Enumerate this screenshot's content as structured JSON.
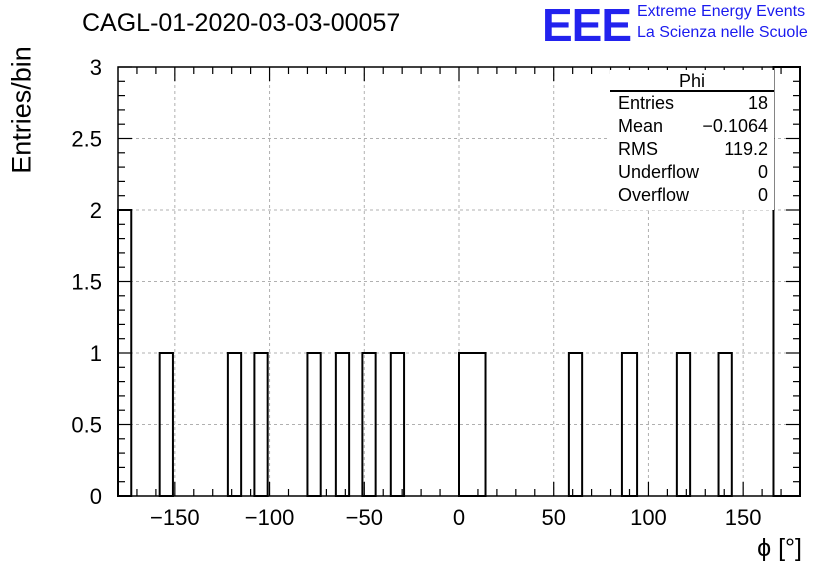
{
  "chart_data": {
    "type": "bar",
    "title": "CAGL-01-2020-03-03-00057",
    "xlabel": "ϕ [°]",
    "ylabel": "Entries/bin",
    "xlim": [
      -180,
      180
    ],
    "ylim": [
      0,
      3
    ],
    "grid": true,
    "x_ticks": [
      -150,
      -100,
      -50,
      0,
      50,
      100,
      150
    ],
    "x_tick_labels": [
      "−150",
      "−100",
      "−50",
      "0",
      "50",
      "100",
      "150"
    ],
    "y_ticks": [
      0,
      0.5,
      1,
      1.5,
      2,
      2.5,
      3
    ],
    "y_tick_labels": [
      "0",
      "0.5",
      "1",
      "1.5",
      "2",
      "2.5",
      "3"
    ],
    "bins": [
      {
        "x0": -180,
        "x1": -173,
        "value": 2
      },
      {
        "x0": -158,
        "x1": -151,
        "value": 1
      },
      {
        "x0": -122,
        "x1": -115,
        "value": 1
      },
      {
        "x0": -108,
        "x1": -101,
        "value": 1
      },
      {
        "x0": -80,
        "x1": -73,
        "value": 1
      },
      {
        "x0": -65,
        "x1": -58,
        "value": 1
      },
      {
        "x0": -51,
        "x1": -44,
        "value": 1
      },
      {
        "x0": -36,
        "x1": -29,
        "value": 1
      },
      {
        "x0": 0,
        "x1": 14,
        "value": 1
      },
      {
        "x0": 58,
        "x1": 65,
        "value": 1
      },
      {
        "x0": 86,
        "x1": 94,
        "value": 1
      },
      {
        "x0": 115,
        "x1": 122,
        "value": 1
      },
      {
        "x0": 137,
        "x1": 144,
        "value": 1
      },
      {
        "x0": 166,
        "x1": 180,
        "value": 3
      }
    ],
    "stats": {
      "name": "Phi",
      "rows": [
        {
          "label": "Entries",
          "value": "18"
        },
        {
          "label": "Mean",
          "value": "−0.1064"
        },
        {
          "label": "RMS",
          "value": "119.2"
        },
        {
          "label": "Underflow",
          "value": "0"
        },
        {
          "label": "Overflow",
          "value": "0"
        }
      ]
    }
  },
  "logo": {
    "mark": "EEE",
    "line1": "Extreme Energy Events",
    "line2": "La Scienza nelle Scuole",
    "color": "#2222ee"
  }
}
